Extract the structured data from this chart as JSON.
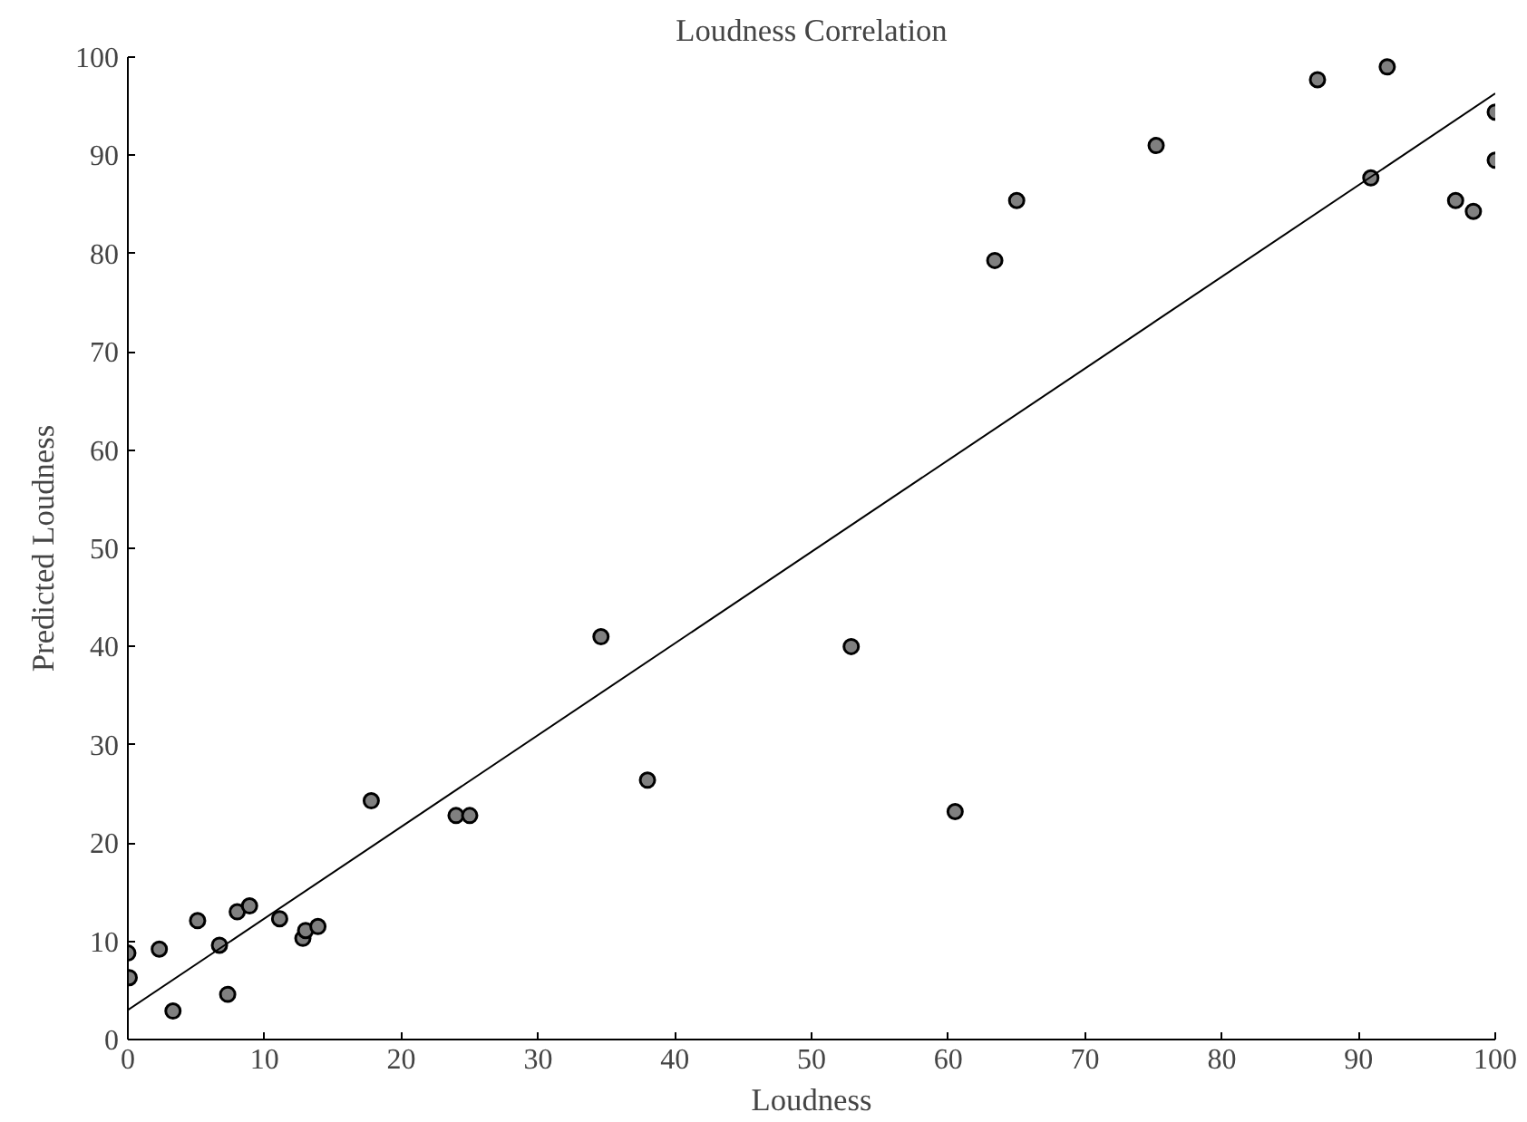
{
  "chart_data": {
    "type": "scatter",
    "title": "Loudness Correlation",
    "xlabel": "Loudness",
    "ylabel": "Predicted Loudness",
    "xlim": [
      0,
      100
    ],
    "ylim": [
      0,
      100
    ],
    "xticks": [
      0,
      10,
      20,
      30,
      40,
      50,
      60,
      70,
      80,
      90,
      100
    ],
    "yticks": [
      0,
      10,
      20,
      30,
      40,
      50,
      60,
      70,
      80,
      90,
      100
    ],
    "grid": false,
    "marker": "circle",
    "series": [
      {
        "color": "#808080",
        "x": [
          0,
          0.1,
          2.3,
          3.3,
          5.1,
          6.7,
          7.3,
          8.0,
          8.9,
          11.1,
          12.8,
          13.0,
          13.9,
          17.8,
          24.0,
          25.0,
          34.6,
          38.0,
          52.9,
          60.5,
          63.4,
          65.0,
          75.2,
          87.0,
          90.9,
          92.1,
          97.1,
          98.4,
          100,
          100
        ],
        "values": [
          8.8,
          6.3,
          9.2,
          2.9,
          12.1,
          9.6,
          4.6,
          13.0,
          13.6,
          12.3,
          10.3,
          11.1,
          11.5,
          24.3,
          22.8,
          22.8,
          41.0,
          26.4,
          40.0,
          23.2,
          79.3,
          85.4,
          91.0,
          97.7,
          87.7,
          99.0,
          85.4,
          84.3,
          94.4,
          89.5
        ]
      },
      {
        "type": "line",
        "color": "#000000",
        "x": [
          0,
          100
        ],
        "values": [
          3.0,
          96.3
        ],
        "line_style": "solid",
        "marker": "none"
      }
    ]
  }
}
